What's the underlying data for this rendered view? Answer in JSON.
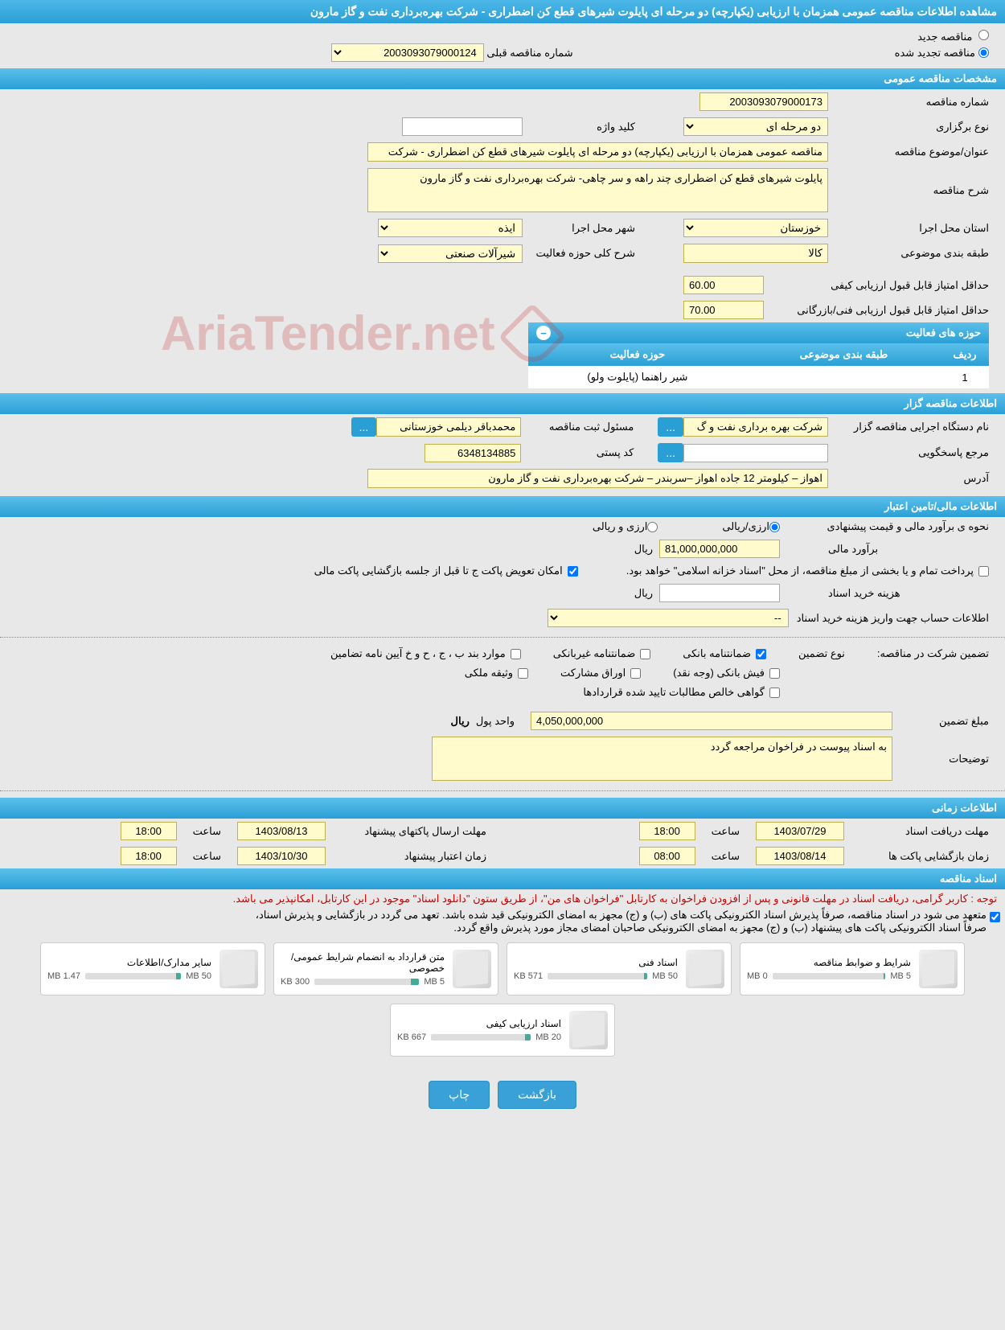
{
  "header": {
    "title": "مشاهده اطلاعات مناقصه عمومی همزمان با ارزیابی (یکپارچه) دو مرحله ای پایلوت شیرهای قطع کن اضطراری - شرکت بهره‌برداری نفت و گاز مارون"
  },
  "radio": {
    "new_tender_label": "مناقصه جدید",
    "renewed_tender_label": "مناقصه تجدید شده",
    "renewed_selected": true,
    "prev_number_label": "شماره مناقصه قبلی",
    "prev_number_value": "2003093079000124"
  },
  "sections": {
    "general": "مشخصات مناقصه عمومی",
    "holder": "اطلاعات مناقصه گزار",
    "financial": "اطلاعات مالی/تامین اعتبار",
    "timing": "اطلاعات زمانی",
    "docs": "اسناد مناقصه"
  },
  "general": {
    "tender_no_label": "شماره مناقصه",
    "tender_no": "2003093079000173",
    "keyword_label": "کلید واژه",
    "keyword": "",
    "holding_type_label": "نوع برگزاری",
    "holding_type": "دو مرحله ای",
    "subject_label": "عنوان/موضوع مناقصه",
    "subject": "مناقصه عمومی همزمان با ارزیابی (یکپارچه) دو مرحله ای پایلوت شیرهای قطع کن اضطراری - شرکت",
    "desc_label": "شرح مناقصه",
    "desc": "پایلوت شیرهای قطع کن اضطراری چند راهه و سر چاهی- شرکت بهره‌برداری نفت و گاز مارون",
    "province_label": "استان محل اجرا",
    "province": "خوزستان",
    "city_label": "شهر محل اجرا",
    "city": "ایذه",
    "category_label": "طبقه بندی موضوعی",
    "category": "کالا",
    "activity_desc_label": "شرح کلی حوزه فعالیت",
    "activity_desc": "شیرآلات صنعتی",
    "min_quality_label": "حداقل امتیاز قابل قبول ارزیابی کیفی",
    "min_quality": "60.00",
    "min_tech_label": "حداقل امتیاز قابل قبول ارزیابی فنی/بازرگانی",
    "min_tech": "70.00",
    "activity_fields_title": "حوزه های فعالیت",
    "table": {
      "col_row": "ردیف",
      "col_cat": "طبقه بندی موضوعی",
      "col_field": "حوزه فعالیت",
      "row1_no": "1",
      "row1_cat": "",
      "row1_field": "شیر راهنما (پایلوت ولو)"
    }
  },
  "holder": {
    "agency_label": "نام دستگاه اجرایی مناقصه گزار",
    "agency": "شرکت بهره برداری نفت و گ",
    "registrant_label": "مسئول ثبت مناقصه",
    "registrant": "محمدباقر دیلمی خوزستانی",
    "contact_label": "مرجع پاسخگویی",
    "contact": "",
    "postal_label": "کد پستی",
    "postal": "6348134885",
    "address_label": "آدرس",
    "address": "اهواز – کیلومتر 12 جاده اهواز –سربندر – شرکت بهره‌برداری نفت و گاز مارون"
  },
  "financial": {
    "method_label": "نحوه ی برآورد مالی و قیمت پیشنهادی",
    "rial_option": "ارزی/ریالی",
    "both_option": "ارزی و ریالی",
    "estimate_label": "برآورد مالی",
    "estimate": "81,000,000,000",
    "currency": "ریال",
    "payment_note": "پرداخت تمام و یا بخشی از مبلغ مناقصه، از محل \"اسناد خزانه اسلامی\" خواهد بود.",
    "swap_option": "امکان تعویض پاکت ج تا قبل از جلسه بازگشایی پاکت مالی",
    "purchase_cost_label": "هزینه خرید اسناد",
    "purchase_currency": "ریال",
    "account_info_label": "اطلاعات حساب جهت واریز هزینه خرید اسناد",
    "account_value": "--",
    "guarantee_label": "تضمین شرکت در مناقصه:",
    "guarantee_type_label": "نوع تضمین",
    "bank_guarantee": "ضمانتنامه بانکی",
    "nonbank_guarantee": "ضمانتنامه غیربانکی",
    "bond_items": "موارد بند ب ، ج ، ح و خ آیین نامه تضامین",
    "bank_check": "فیش بانکی (وجه نقد)",
    "securities": "اوراق مشارکت",
    "property": "وثیقه ملکی",
    "contract_claims": "گواهی خالص مطالبات تایید شده قراردادها",
    "guarantee_amount_label": "مبلغ تضمین",
    "guarantee_amount": "4,050,000,000",
    "currency_unit_label": "واحد پول",
    "currency_unit": "ریال",
    "notes_label": "توضیحات",
    "notes": "به اسناد پیوست در فراخوان مراجعه گردد"
  },
  "timing": {
    "doc_receive_label": "مهلت دریافت اسناد",
    "doc_receive_date": "1403/07/29",
    "time_label": "ساعت",
    "doc_receive_time": "18:00",
    "packet_send_label": "مهلت ارسال پاکتهای پیشنهاد",
    "packet_send_date": "1403/08/13",
    "packet_send_time": "18:00",
    "open_label": "زمان بازگشایی پاکت ها",
    "open_date": "1403/08/14",
    "open_time": "08:00",
    "validity_label": "زمان اعتبار پیشنهاد",
    "validity_date": "1403/10/30",
    "validity_time": "18:00"
  },
  "docs": {
    "red_note": "توجه : کاربر گرامی، دریافت اسناد در مهلت قانونی و پس از افزودن فراخوان به کارتابل \"فراخوان های من\"، از طریق ستون \"دانلود اسناد\" موجود در این کارتابل، امکانپذیر می باشد.",
    "black_note1": "متعهد می شود در اسناد مناقصه، صرفاً پذیرش اسناد الکترونیکی پاکت های (ب) و (ج) مجهز به امضای الکترونیکی قید شده باشد. تعهد می گردد در بازگشایی و پذیرش اسناد،",
    "black_note2": "صرفاً اسناد الکترونیکی پاکت های پیشنهاد (ب) و (ج) مجهز به امضای الکترونیکی صاحبان امضای مجاز مورد پذیرش واقع گردد.",
    "items": [
      {
        "title": "شرایط و ضوابط مناقصه",
        "size": "0 MB",
        "max": "5 MB",
        "fill": 2
      },
      {
        "title": "اسناد فنی",
        "size": "571 KB",
        "max": "50 MB",
        "fill": 3
      },
      {
        "title": "متن قرارداد به انضمام شرایط عمومی/خصوصی",
        "size": "300 KB",
        "max": "5 MB",
        "fill": 8
      },
      {
        "title": "سایر مدارک/اطلاعات",
        "size": "1.47 MB",
        "max": "50 MB",
        "fill": 5
      },
      {
        "title": "اسناد ارزیابی کیفی",
        "size": "667 KB",
        "max": "20 MB",
        "fill": 6
      }
    ]
  },
  "buttons": {
    "back": "بازگشت",
    "print": "چاپ"
  },
  "watermark": "AriaTender.net"
}
